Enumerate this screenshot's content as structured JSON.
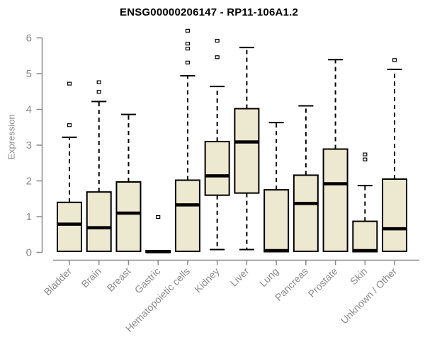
{
  "chart_data": {
    "type": "boxplot",
    "title": "ENSG00000206147 - RP11-106A1.2",
    "xlabel": "",
    "ylabel": "Expression",
    "ylim": [
      0,
      6
    ],
    "yticks": [
      0,
      1,
      2,
      3,
      4,
      5,
      6
    ],
    "grid": false,
    "legend": false,
    "categories": [
      "Bladder",
      "Brain",
      "Breast",
      "Gastric",
      "Hematopoietic cells",
      "Kidney",
      "Liver",
      "Lung",
      "Pancreas",
      "Prostate",
      "Skin",
      "Unknown / Other"
    ],
    "boxes": [
      {
        "category": "Bladder",
        "whisker_low": 0.03,
        "q1": 0.03,
        "median": 0.79,
        "q3": 1.4,
        "whisker_high": 3.22,
        "outliers": [
          3.56,
          4.72
        ]
      },
      {
        "category": "Brain",
        "whisker_low": 0.03,
        "q1": 0.03,
        "median": 0.69,
        "q3": 1.69,
        "whisker_high": 4.22,
        "outliers": [
          4.49,
          4.76
        ]
      },
      {
        "category": "Breast",
        "whisker_low": 0.03,
        "q1": 0.03,
        "median": 1.1,
        "q3": 1.97,
        "whisker_high": 3.86,
        "outliers": []
      },
      {
        "category": "Gastric",
        "whisker_low": 0.0,
        "q1": 0.0,
        "median": 0.02,
        "q3": 0.05,
        "whisker_high": 0.05,
        "outliers": [
          0.99
        ]
      },
      {
        "category": "Hematopoietic cells",
        "whisker_low": 0.03,
        "q1": 0.03,
        "median": 1.33,
        "q3": 2.02,
        "whisker_high": 4.94,
        "outliers": [
          5.31,
          5.7,
          5.84,
          6.2
        ]
      },
      {
        "category": "Kidney",
        "whisker_low": 0.08,
        "q1": 1.6,
        "median": 2.14,
        "q3": 3.1,
        "whisker_high": 4.64,
        "outliers": [
          5.46,
          5.92
        ]
      },
      {
        "category": "Liver",
        "whisker_low": 0.08,
        "q1": 1.66,
        "median": 3.09,
        "q3": 4.02,
        "whisker_high": 5.73,
        "outliers": []
      },
      {
        "category": "Lung",
        "whisker_low": 0.02,
        "q1": 0.02,
        "median": 0.05,
        "q3": 1.75,
        "whisker_high": 3.63,
        "outliers": []
      },
      {
        "category": "Pancreas",
        "whisker_low": 0.03,
        "q1": 0.03,
        "median": 1.37,
        "q3": 2.16,
        "whisker_high": 4.1,
        "outliers": []
      },
      {
        "category": "Prostate",
        "whisker_low": 0.03,
        "q1": 0.03,
        "median": 1.92,
        "q3": 2.89,
        "whisker_high": 5.39,
        "outliers": []
      },
      {
        "category": "Skin",
        "whisker_low": 0.02,
        "q1": 0.02,
        "median": 0.05,
        "q3": 0.87,
        "whisker_high": 1.87,
        "outliers": [
          2.6,
          2.74
        ]
      },
      {
        "category": "Unknown / Other",
        "whisker_low": 0.03,
        "q1": 0.03,
        "median": 0.66,
        "q3": 2.05,
        "whisker_high": 5.12,
        "outliers": [
          5.38
        ]
      }
    ]
  },
  "colors": {
    "box_fill": "#ede8d0",
    "box_stroke": "#000000",
    "median": "#000000",
    "whisker": "#000000",
    "outlier_stroke": "#000000",
    "outlier_fill": "#ffffff",
    "axis": "#8a8a8a",
    "tick_label": "#8a8a8a",
    "title": "#000000",
    "background": "#ffffff"
  }
}
